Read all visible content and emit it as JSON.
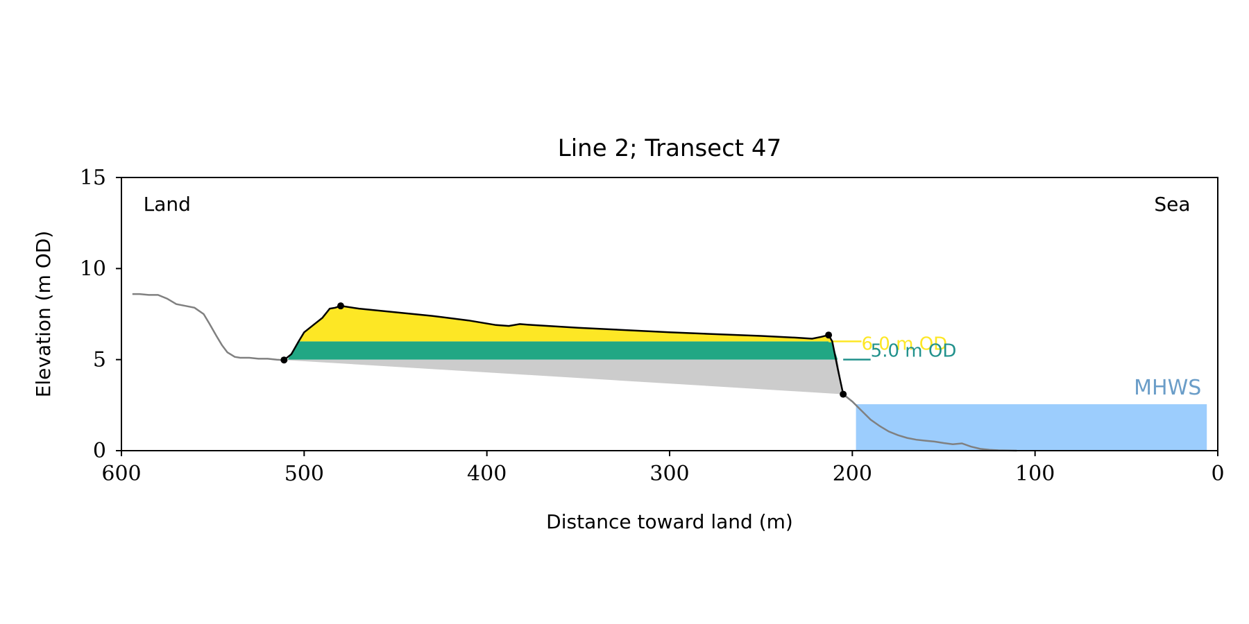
{
  "chart_data": {
    "type": "area",
    "title": "Line 2; Transect 47",
    "xlabel": "Distance toward land (m)",
    "ylabel": "Elevation (m OD)",
    "xlim": [
      600,
      0
    ],
    "ylim": [
      0,
      15
    ],
    "x_reversed": true,
    "xticks": [
      600,
      500,
      400,
      300,
      200,
      100,
      0
    ],
    "yticks": [
      0,
      5,
      10,
      15
    ],
    "grid": false,
    "annotations": {
      "land": "Land",
      "sea": "Sea",
      "mhws": "MHWS",
      "level_6": "6.0 m OD",
      "level_5": "5.0 m OD"
    },
    "colors": {
      "ground": "#808080",
      "dune": "#000000",
      "fill_above_6": "#fde725",
      "fill_5_to_6": "#21a784",
      "fill_below_5": "#cccccc",
      "mhws": "#9ccdfd",
      "mhws_label": "#6a9dc8",
      "level_6_label": "#fde725",
      "level_5_label": "#21918c"
    },
    "ground_profile": {
      "x": [
        594,
        590,
        585,
        580,
        575,
        570,
        565,
        560,
        555,
        552,
        548,
        545,
        542,
        538,
        535,
        530,
        525,
        520,
        515,
        512
      ],
      "y": [
        8.6,
        8.6,
        8.55,
        8.55,
        8.35,
        8.05,
        7.95,
        7.85,
        7.5,
        7.0,
        6.3,
        5.8,
        5.4,
        5.15,
        5.1,
        5.1,
        5.05,
        5.05,
        5.0,
        4.98
      ]
    },
    "dune_profile": {
      "x": [
        511,
        507,
        503,
        500,
        495,
        490,
        486,
        483,
        480,
        470,
        450,
        430,
        410,
        395,
        388,
        382,
        375,
        350,
        300,
        250,
        230,
        222,
        217,
        213,
        211,
        208,
        205
      ],
      "y": [
        4.98,
        5.3,
        6.0,
        6.5,
        6.9,
        7.3,
        7.8,
        7.85,
        7.95,
        7.8,
        7.6,
        7.4,
        7.15,
        6.9,
        6.85,
        6.95,
        6.9,
        6.75,
        6.5,
        6.3,
        6.2,
        6.15,
        6.25,
        6.35,
        6.0,
        4.5,
        3.1
      ]
    },
    "sea_profile": {
      "x": [
        205,
        200,
        195,
        190,
        185,
        180,
        175,
        170,
        165,
        160,
        155,
        150,
        145,
        140,
        135,
        130,
        125,
        120,
        110
      ],
      "y": [
        3.1,
        2.7,
        2.2,
        1.7,
        1.35,
        1.05,
        0.85,
        0.7,
        0.6,
        0.55,
        0.5,
        0.42,
        0.35,
        0.4,
        0.22,
        0.1,
        0.05,
        0.02,
        0.0
      ]
    },
    "key_points": {
      "x": [
        511,
        480,
        213,
        205
      ],
      "y": [
        4.98,
        7.95,
        6.35,
        3.1
      ]
    },
    "base_line": {
      "x": [
        511,
        205
      ],
      "y": [
        4.98,
        3.1
      ]
    },
    "levels": [
      {
        "name": "6.0 m OD",
        "value": 6.0,
        "line_x": [
          213,
          195
        ]
      },
      {
        "name": "5.0 m OD",
        "value": 5.0,
        "line_x": [
          205,
          190
        ]
      }
    ],
    "mhws": {
      "value": 2.55,
      "x": [
        198,
        6
      ]
    }
  }
}
